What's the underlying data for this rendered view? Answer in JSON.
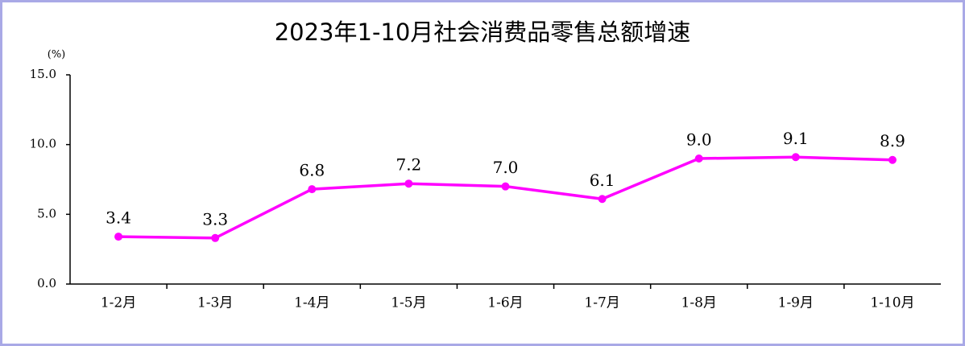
{
  "chart_data": {
    "type": "line",
    "title": "2023年1-10月社会消费品零售总额增速",
    "y_unit": "(%)",
    "categories": [
      "1-2月",
      "1-3月",
      "1-4月",
      "1-5月",
      "1-6月",
      "1-7月",
      "1-8月",
      "1-9月",
      "1-10月"
    ],
    "values": [
      3.4,
      3.3,
      6.8,
      7.2,
      7.0,
      6.1,
      9.0,
      9.1,
      8.9
    ],
    "value_labels": [
      "3.4",
      "3.3",
      "6.8",
      "7.2",
      "7.0",
      "6.1",
      "9.0",
      "9.1",
      "8.9"
    ],
    "color": "#ff00ff",
    "ylim": [
      0,
      15
    ],
    "yticks": [
      {
        "value": 0,
        "label": "0.0"
      },
      {
        "value": 5,
        "label": "5.0"
      },
      {
        "value": 10,
        "label": "10.0"
      },
      {
        "value": 15,
        "label": "15.0"
      }
    ],
    "grid": false
  }
}
